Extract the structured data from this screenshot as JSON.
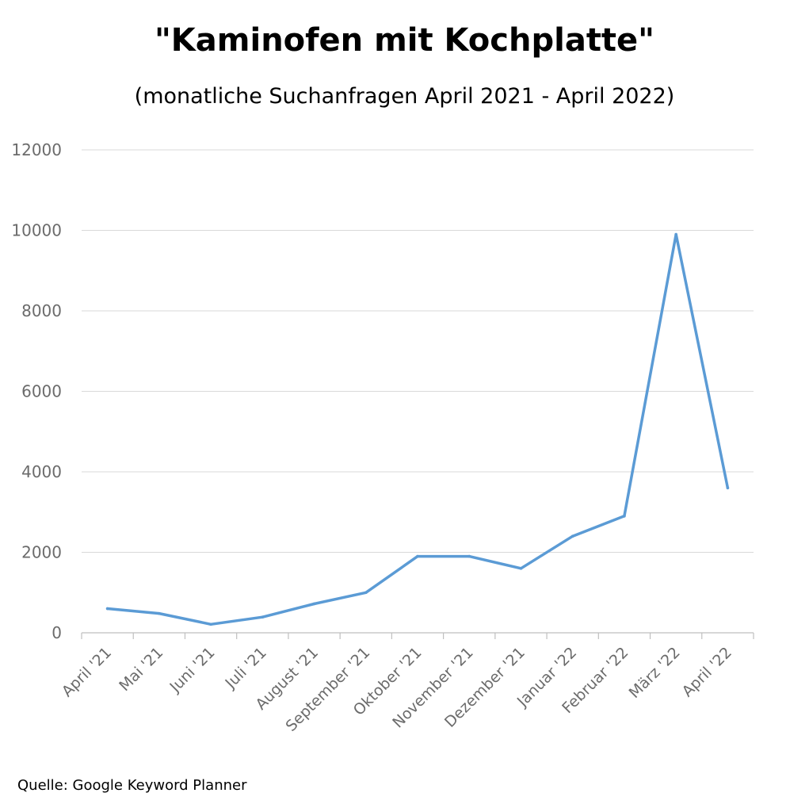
{
  "chart_data": {
    "type": "line",
    "title": "\"Kaminofen mit Kochplatte\"",
    "subtitle": "(monatliche Suchanfragen April 2021 - April 2022)",
    "categories": [
      "April '21",
      "Mai '21",
      "Juni '21",
      "Juli '21",
      "August '21",
      "September '21",
      "Oktober '21",
      "November '21",
      "Dezember '21",
      "Januar '22",
      "Februar '22",
      "März '22",
      "April '22"
    ],
    "series": [
      {
        "values": [
          600,
          480,
          210,
          390,
          720,
          1000,
          1900,
          1900,
          1600,
          2400,
          2900,
          9900,
          3600
        ]
      }
    ],
    "yticks": [
      "0",
      "2000",
      "4000",
      "6000",
      "8000",
      "10000",
      "12000"
    ],
    "ylim": [
      0,
      12000
    ],
    "grid": true,
    "line_color": "#5b9bd5"
  },
  "source": "Quelle: Google Keyword Planner"
}
